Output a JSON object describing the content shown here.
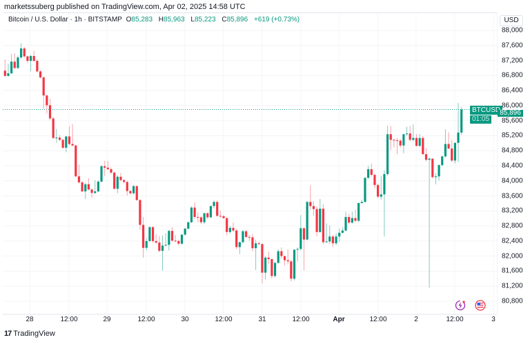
{
  "publisher_line": "marketssuberg published on TradingView.com, Apr 02, 2025 14:58 UTC",
  "legend": {
    "symbol": "Bitcoin / U.S. Dollar · 1h · BITSTAMP",
    "o_label": "O",
    "o": "85,283",
    "h_label": "H",
    "h": "85,963",
    "l_label": "L",
    "l": "85,223",
    "c_label": "C",
    "c": "85,896",
    "change": "+619 (+0.73%)"
  },
  "currency": "USD",
  "last_price": {
    "symbol_tag": "BTCUSD",
    "price": "85,896",
    "countdown": "01:05",
    "value": 85896
  },
  "colors": {
    "up": "#089981",
    "down": "#f23645",
    "up_wick": "#7fcbbd",
    "down_wick": "#f7a1a9"
  },
  "brand": "TradingView",
  "icons": [
    "lightning-event-icon",
    "us-flag-icon"
  ],
  "chart_data": {
    "type": "candlestick",
    "interval": "1h",
    "ylim": [
      80800,
      88000
    ],
    "y_ticks": [
      "88,000",
      "87,600",
      "87,200",
      "86,800",
      "86,400",
      "86,000",
      "85,600",
      "85,200",
      "84,800",
      "84,400",
      "84,000",
      "83,600",
      "83,200",
      "82,800",
      "82,400",
      "82,000",
      "81,600",
      "81,200",
      "80,800"
    ],
    "x_ticks": [
      "28",
      "12:00",
      "29",
      "12:00",
      "30",
      "12:00",
      "31",
      "12:00",
      "Apr",
      "12:00",
      "2",
      "12:00",
      "3"
    ],
    "grid": true,
    "candles": [
      [
        86930,
        87230,
        86760,
        86790
      ],
      [
        86790,
        87110,
        86770,
        86860
      ],
      [
        86860,
        87370,
        86840,
        87170
      ],
      [
        87170,
        87390,
        86970,
        87000
      ],
      [
        87000,
        87330,
        86980,
        87280
      ],
      [
        87280,
        87660,
        87240,
        87520
      ],
      [
        87520,
        87560,
        87270,
        87310
      ],
      [
        87310,
        87330,
        87130,
        87190
      ],
      [
        87190,
        87350,
        86910,
        87320
      ],
      [
        87320,
        87460,
        87170,
        87190
      ],
      [
        87190,
        87230,
        86880,
        86910
      ],
      [
        86910,
        86940,
        86720,
        86750
      ],
      [
        86750,
        86780,
        85920,
        86270
      ],
      [
        86270,
        86290,
        85790,
        86010
      ],
      [
        86010,
        86180,
        85610,
        85660
      ],
      [
        85660,
        85700,
        85110,
        85140
      ],
      [
        85140,
        85380,
        85010,
        85150
      ],
      [
        85150,
        85220,
        85060,
        85090
      ],
      [
        85090,
        85120,
        84850,
        84880
      ],
      [
        84880,
        85200,
        84760,
        85180
      ],
      [
        85180,
        85450,
        84950,
        84980
      ],
      [
        84980,
        85510,
        84920,
        84940
      ],
      [
        84940,
        84960,
        84100,
        84120
      ],
      [
        84120,
        84430,
        83930,
        83960
      ],
      [
        83960,
        83990,
        83700,
        83720
      ],
      [
        83720,
        83940,
        83520,
        83910
      ],
      [
        83910,
        84070,
        83750,
        83770
      ],
      [
        83770,
        83800,
        83550,
        83680
      ],
      [
        83680,
        84020,
        83650,
        83720
      ],
      [
        83720,
        84010,
        83700,
        83980
      ],
      [
        83980,
        84420,
        83960,
        84390
      ],
      [
        84390,
        84530,
        84130,
        84350
      ],
      [
        84350,
        84530,
        84290,
        84310
      ],
      [
        84310,
        84360,
        84180,
        84220
      ],
      [
        84220,
        84240,
        83770,
        83790
      ],
      [
        83790,
        84150,
        83670,
        84110
      ],
      [
        84110,
        84210,
        83990,
        84020
      ],
      [
        84020,
        84050,
        83930,
        83970
      ],
      [
        83970,
        84000,
        83610,
        83730
      ],
      [
        83730,
        83760,
        83640,
        83670
      ],
      [
        83670,
        83890,
        83640,
        83860
      ],
      [
        83860,
        83880,
        83470,
        83490
      ],
      [
        83490,
        83510,
        82700,
        82830
      ],
      [
        82830,
        83040,
        81960,
        82220
      ],
      [
        82220,
        82470,
        82160,
        82400
      ],
      [
        82400,
        82790,
        82380,
        82770
      ],
      [
        82770,
        82790,
        82350,
        82400
      ],
      [
        82400,
        82580,
        82330,
        82360
      ],
      [
        82360,
        82530,
        82100,
        82140
      ],
      [
        82140,
        82550,
        81610,
        82280
      ],
      [
        82280,
        82610,
        82260,
        82300
      ],
      [
        82300,
        82700,
        82150,
        82670
      ],
      [
        82670,
        82770,
        82390,
        82410
      ],
      [
        82410,
        82560,
        82370,
        82400
      ],
      [
        82400,
        82440,
        82290,
        82330
      ],
      [
        82330,
        82590,
        82300,
        82570
      ],
      [
        82570,
        82760,
        82550,
        82730
      ],
      [
        82730,
        82920,
        82710,
        82900
      ],
      [
        82900,
        83320,
        82880,
        83290
      ],
      [
        83290,
        83430,
        82990,
        83040
      ],
      [
        83040,
        83160,
        82900,
        83030
      ],
      [
        83030,
        83060,
        82850,
        82900
      ],
      [
        82900,
        83150,
        82850,
        83140
      ],
      [
        83140,
        83160,
        82990,
        83030
      ],
      [
        83030,
        83340,
        83010,
        83330
      ],
      [
        83330,
        83480,
        83270,
        83440
      ],
      [
        83440,
        83480,
        83050,
        83070
      ],
      [
        83070,
        83210,
        83020,
        83060
      ],
      [
        83060,
        83100,
        82990,
        83010
      ],
      [
        83010,
        83030,
        82550,
        82640
      ],
      [
        82640,
        82800,
        82600,
        82750
      ],
      [
        82750,
        82900,
        82640,
        82680
      ],
      [
        82680,
        82720,
        82180,
        82240
      ],
      [
        82240,
        82380,
        82050,
        82370
      ],
      [
        82370,
        82700,
        82340,
        82660
      ],
      [
        82660,
        82700,
        82480,
        82510
      ],
      [
        82510,
        82560,
        82400,
        82500
      ],
      [
        82500,
        82590,
        82130,
        82210
      ],
      [
        82210,
        82430,
        81630,
        82340
      ],
      [
        82340,
        82390,
        82290,
        82320
      ],
      [
        82320,
        82340,
        81270,
        81560
      ],
      [
        81560,
        82000,
        81380,
        81960
      ],
      [
        81960,
        82120,
        81800,
        81920
      ],
      [
        81920,
        81930,
        81400,
        81470
      ],
      [
        81470,
        81840,
        81430,
        81820
      ],
      [
        81820,
        82180,
        81800,
        82130
      ],
      [
        82130,
        82230,
        81940,
        82000
      ],
      [
        82000,
        82010,
        81750,
        81890
      ],
      [
        81890,
        82180,
        81780,
        81860
      ],
      [
        81860,
        81900,
        81330,
        81400
      ],
      [
        81400,
        82180,
        81350,
        82170
      ],
      [
        82170,
        82230,
        81860,
        82190
      ],
      [
        82190,
        83090,
        82150,
        82740
      ],
      [
        82740,
        82760,
        81620,
        82440
      ],
      [
        82440,
        83470,
        82420,
        83440
      ],
      [
        83440,
        83880,
        83240,
        83330
      ],
      [
        83330,
        83460,
        83080,
        83250
      ],
      [
        83250,
        83320,
        82530,
        82640
      ],
      [
        82640,
        83520,
        82620,
        83260
      ],
      [
        83260,
        83380,
        82320,
        82370
      ],
      [
        82370,
        82870,
        82350,
        82390
      ],
      [
        82390,
        82820,
        82330,
        82520
      ],
      [
        82520,
        82560,
        82240,
        82340
      ],
      [
        82340,
        82600,
        82290,
        82520
      ],
      [
        82520,
        82730,
        82380,
        82620
      ],
      [
        82620,
        82760,
        82600,
        82680
      ],
      [
        82680,
        83180,
        82650,
        83040
      ],
      [
        83040,
        83130,
        82850,
        82890
      ],
      [
        82890,
        83180,
        82860,
        83010
      ],
      [
        83010,
        83230,
        82900,
        82940
      ],
      [
        82940,
        83420,
        82900,
        83410
      ],
      [
        83410,
        83500,
        83400,
        83440
      ],
      [
        83440,
        84100,
        83420,
        84080
      ],
      [
        84080,
        84400,
        84060,
        84310
      ],
      [
        84310,
        84460,
        84120,
        84160
      ],
      [
        84160,
        84190,
        83800,
        83890
      ],
      [
        83890,
        83930,
        83530,
        83580
      ],
      [
        83580,
        84130,
        83500,
        83640
      ],
      [
        83640,
        84280,
        82520,
        84180
      ],
      [
        84180,
        85460,
        84140,
        85240
      ],
      [
        85240,
        85460,
        84820,
        85090
      ],
      [
        85090,
        85120,
        84890,
        85080
      ],
      [
        85080,
        85140,
        84710,
        85070
      ],
      [
        85070,
        85110,
        84880,
        84940
      ],
      [
        84940,
        85250,
        84730,
        85240
      ],
      [
        85240,
        85440,
        85200,
        85260
      ],
      [
        85260,
        85460,
        85050,
        85090
      ],
      [
        85090,
        85500,
        85050,
        85140
      ],
      [
        85140,
        85240,
        84910,
        84930
      ],
      [
        84930,
        85240,
        84900,
        85140
      ],
      [
        85140,
        85190,
        84700,
        84710
      ],
      [
        84710,
        84870,
        84520,
        84560
      ],
      [
        84560,
        84620,
        81160,
        84590
      ],
      [
        84590,
        84600,
        84060,
        84100
      ],
      [
        84100,
        84200,
        83910,
        84120
      ],
      [
        84120,
        84440,
        84010,
        84420
      ],
      [
        84420,
        84670,
        84380,
        84650
      ],
      [
        84650,
        85370,
        84620,
        84980
      ],
      [
        84980,
        85290,
        84840,
        84860
      ],
      [
        84860,
        85090,
        84500,
        84540
      ],
      [
        84540,
        85020,
        84460,
        85010
      ],
      [
        85010,
        86070,
        84500,
        85283
      ],
      [
        85283,
        85963,
        85223,
        85896
      ]
    ]
  }
}
